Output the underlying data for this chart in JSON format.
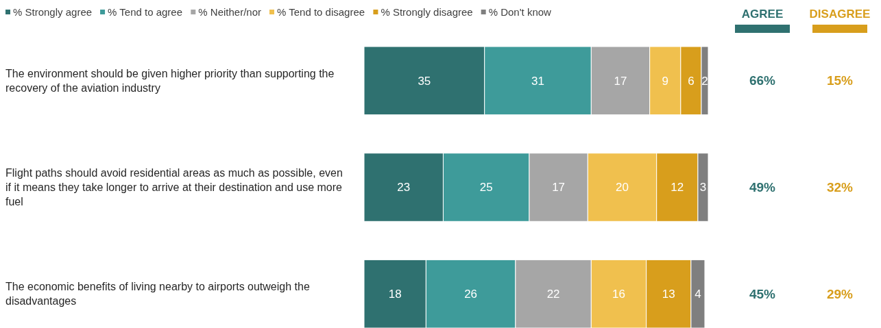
{
  "chart_data": {
    "type": "bar",
    "orientation": "horizontal",
    "stacked": true,
    "data_labels": true,
    "legend": "top left",
    "tick_labels": "y",
    "xlim": [
      0,
      100
    ],
    "categories": [
      "The environment should be given higher priority than supporting the recovery of the aviation industry",
      "Flight paths should avoid residential areas as much as possible, even if it means they take longer to arrive at their destination and use more fuel",
      "The economic benefits of living nearby to airports outweigh the disadvantages"
    ],
    "series": [
      {
        "name": "% Strongly agree",
        "color": "#2f7170",
        "values": [
          35,
          23,
          18
        ]
      },
      {
        "name": "% Tend to agree",
        "color": "#3e9b9a",
        "values": [
          31,
          25,
          26
        ]
      },
      {
        "name": "% Neither/nor",
        "color": "#a6a6a6",
        "values": [
          17,
          17,
          22
        ]
      },
      {
        "name": "% Tend to disagree",
        "color": "#f0c04e",
        "values": [
          9,
          20,
          16
        ]
      },
      {
        "name": "% Strongly disagree",
        "color": "#d89e1c",
        "values": [
          6,
          12,
          13
        ]
      },
      {
        "name": "% Don't know",
        "color": "#7f7f7f",
        "values": [
          2,
          3,
          4
        ]
      }
    ],
    "annotations": [
      "AGREE",
      "DISAGREE",
      "66%",
      "15%",
      "49%",
      "32%",
      "45%",
      "29%"
    ]
  }
}
